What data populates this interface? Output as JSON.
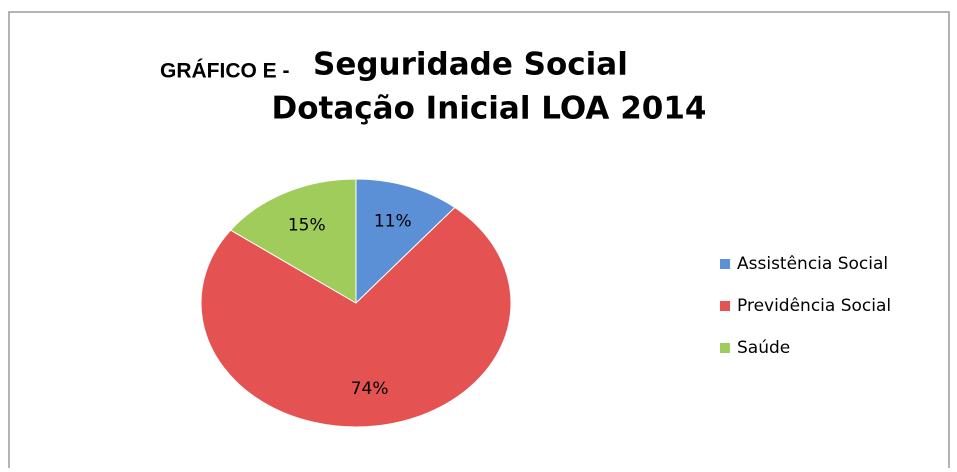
{
  "chart_data": {
    "type": "pie",
    "label": "GRÁFICO E -",
    "title_lines": [
      "Seguridade Social",
      "Dotação Inicial LOA 2014"
    ],
    "categories": [
      "Assistência Social",
      "Previdência Social",
      "Saúde"
    ],
    "values": [
      11,
      74,
      15
    ],
    "value_labels": [
      "11%",
      "74%",
      "15%"
    ],
    "colors": [
      "#5b8fd6",
      "#e45352",
      "#9fcc5a"
    ],
    "legend": "right"
  }
}
